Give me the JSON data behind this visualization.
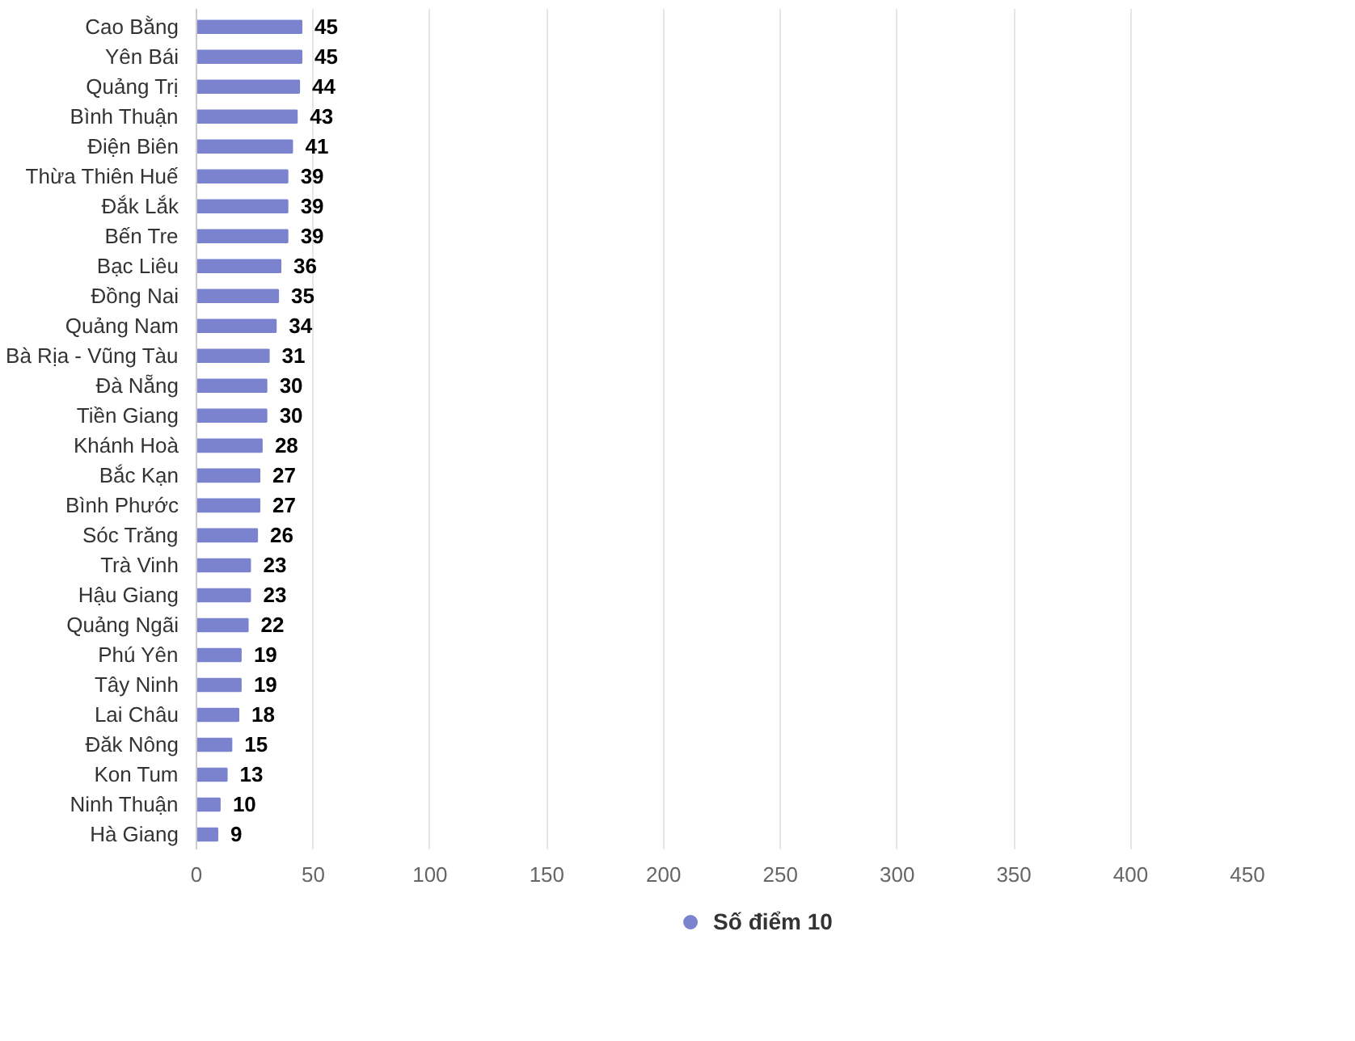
{
  "chart_data": {
    "type": "bar",
    "orientation": "horizontal",
    "categories": [
      "Cao Bằng",
      "Yên Bái",
      "Quảng Trị",
      "Bình Thuận",
      "Điện Biên",
      "Thừa Thiên Huế",
      "Đắk Lắk",
      "Bến Tre",
      "Bạc Liêu",
      "Đồng Nai",
      "Quảng Nam",
      "Bà Rịa - Vũng Tàu",
      "Đà Nẵng",
      "Tiền Giang",
      "Khánh Hoà",
      "Bắc Kạn",
      "Bình Phước",
      "Sóc Trăng",
      "Trà Vinh",
      "Hậu Giang",
      "Quảng Ngãi",
      "Phú Yên",
      "Tây Ninh",
      "Lai Châu",
      "Đăk Nông",
      "Kon Tum",
      "Ninh Thuận",
      "Hà Giang"
    ],
    "series": [
      {
        "name": "Số điểm 10",
        "color": "#7b83cf",
        "values": [
          45,
          45,
          44,
          43,
          41,
          39,
          39,
          39,
          36,
          35,
          34,
          31,
          30,
          30,
          28,
          27,
          27,
          26,
          23,
          23,
          22,
          19,
          19,
          18,
          15,
          13,
          10,
          9
        ]
      }
    ],
    "xlim": [
      0,
      450
    ],
    "xticks": [
      0,
      50,
      100,
      150,
      200,
      250,
      300,
      350,
      400,
      450
    ],
    "grid": "x",
    "legend": "bottom",
    "marker": "circle",
    "data_labels": true
  }
}
